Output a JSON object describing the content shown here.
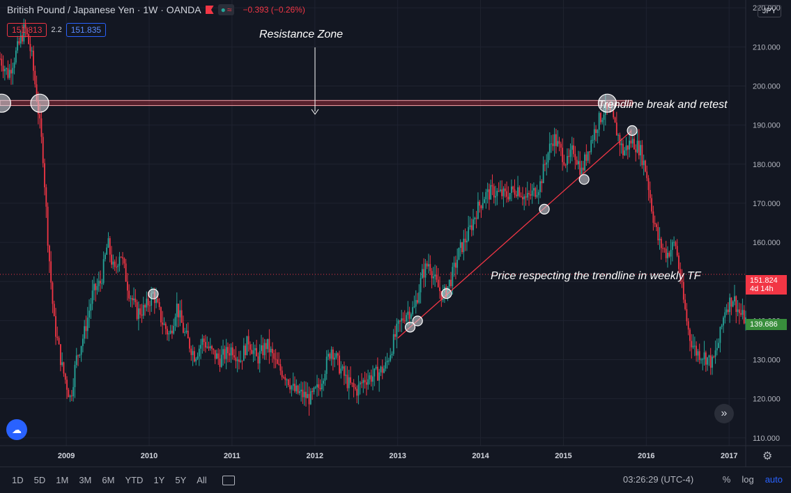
{
  "header": {
    "symbol": "British Pound / Japanese Yen · 1W · OANDA",
    "change": "−0.393 (−0.26%)",
    "sell_price": "151.813",
    "spread": "2.2",
    "buy_price": "151.835",
    "currency": "JPY"
  },
  "annotations": {
    "resistance": "Resistance Zone",
    "retest": "Trendline break and retest",
    "respect": "Price respecting the trendline in weekly TF"
  },
  "price_tags": {
    "current": "151.824",
    "countdown": "4d 14h",
    "green": "139.686"
  },
  "toolbar": {
    "timeframes": [
      "1D",
      "5D",
      "1M",
      "3M",
      "6M",
      "YTD",
      "1Y",
      "5Y",
      "All"
    ],
    "clock": "03:26:29 (UTC-4)",
    "percent": "%",
    "log": "log",
    "auto": "auto"
  },
  "colors": {
    "up": "#26a69a",
    "down": "#f23645",
    "trendline": "#f23645",
    "zone": "#f23645",
    "background": "#131722"
  },
  "chart_data": {
    "type": "candlestick",
    "x_ticks": [
      "2009",
      "2010",
      "2011",
      "2012",
      "2013",
      "2014",
      "2015",
      "2016",
      "2017"
    ],
    "y_ticks": [
      "220.000",
      "210.000",
      "200.000",
      "190.000",
      "180.000",
      "170.000",
      "160.000",
      "150.000",
      "140.000",
      "130.000",
      "120.000",
      "110.000"
    ],
    "ylim": [
      108,
      222
    ],
    "xlim": [
      2008.2,
      2017.2
    ],
    "resistance_zone": [
      195,
      196.3
    ],
    "current_price": 151.824,
    "trendline": {
      "start": [
        2013.0,
        135.5
      ],
      "end": [
        2015.82,
        188.5
      ]
    },
    "touch_points": [
      {
        "x": 2008.22,
        "y": 195.6,
        "large": true
      },
      {
        "x": 2008.68,
        "y": 195.6,
        "large": true
      },
      {
        "x": 2015.53,
        "y": 195.6,
        "large": true
      },
      {
        "x": 2010.05,
        "y": 146.8,
        "large": false
      },
      {
        "x": 2013.15,
        "y": 138.3,
        "large": false
      },
      {
        "x": 2013.24,
        "y": 139.9,
        "large": false
      },
      {
        "x": 2013.59,
        "y": 146.9,
        "large": false
      },
      {
        "x": 2014.77,
        "y": 168.5,
        "large": false
      },
      {
        "x": 2015.25,
        "y": 176.1,
        "large": false
      },
      {
        "x": 2015.83,
        "y": 188.6,
        "large": false
      }
    ],
    "price_path": [
      [
        2008.2,
        207
      ],
      [
        2008.3,
        203
      ],
      [
        2008.42,
        210
      ],
      [
        2008.5,
        215
      ],
      [
        2008.58,
        208
      ],
      [
        2008.65,
        196
      ],
      [
        2008.72,
        182
      ],
      [
        2008.78,
        160
      ],
      [
        2008.85,
        140
      ],
      [
        2008.95,
        128
      ],
      [
        2009.05,
        120
      ],
      [
        2009.12,
        130
      ],
      [
        2009.22,
        137
      ],
      [
        2009.32,
        147
      ],
      [
        2009.42,
        150
      ],
      [
        2009.5,
        160
      ],
      [
        2009.58,
        152
      ],
      [
        2009.65,
        158
      ],
      [
        2009.75,
        148
      ],
      [
        2009.85,
        142
      ],
      [
        2009.95,
        143
      ],
      [
        2010.05,
        147
      ],
      [
        2010.15,
        140
      ],
      [
        2010.25,
        136
      ],
      [
        2010.33,
        144
      ],
      [
        2010.42,
        137
      ],
      [
        2010.55,
        131
      ],
      [
        2010.65,
        135
      ],
      [
        2010.75,
        132
      ],
      [
        2010.85,
        130
      ],
      [
        2011.0,
        133
      ],
      [
        2011.1,
        130
      ],
      [
        2011.2,
        135
      ],
      [
        2011.3,
        130
      ],
      [
        2011.42,
        134
      ],
      [
        2011.55,
        128
      ],
      [
        2011.65,
        126
      ],
      [
        2011.75,
        122
      ],
      [
        2011.85,
        121
      ],
      [
        2011.95,
        120
      ],
      [
        2012.05,
        123
      ],
      [
        2012.2,
        133
      ],
      [
        2012.3,
        128
      ],
      [
        2012.4,
        124
      ],
      [
        2012.5,
        122
      ],
      [
        2012.6,
        125
      ],
      [
        2012.72,
        126
      ],
      [
        2012.85,
        128
      ],
      [
        2013.0,
        138
      ],
      [
        2013.1,
        142
      ],
      [
        2013.2,
        143
      ],
      [
        2013.3,
        152
      ],
      [
        2013.38,
        155
      ],
      [
        2013.45,
        150
      ],
      [
        2013.55,
        146
      ],
      [
        2013.65,
        151
      ],
      [
        2013.75,
        158
      ],
      [
        2013.85,
        162
      ],
      [
        2013.95,
        168
      ],
      [
        2014.05,
        172
      ],
      [
        2014.15,
        173
      ],
      [
        2014.3,
        172
      ],
      [
        2014.45,
        174
      ],
      [
        2014.55,
        171
      ],
      [
        2014.65,
        173
      ],
      [
        2014.72,
        175
      ],
      [
        2014.8,
        182
      ],
      [
        2014.88,
        187
      ],
      [
        2014.95,
        184
      ],
      [
        2015.05,
        180
      ],
      [
        2015.12,
        184
      ],
      [
        2015.22,
        178
      ],
      [
        2015.3,
        184
      ],
      [
        2015.4,
        190
      ],
      [
        2015.5,
        194
      ],
      [
        2015.58,
        192
      ],
      [
        2015.65,
        188
      ],
      [
        2015.72,
        183
      ],
      [
        2015.82,
        186
      ],
      [
        2015.92,
        184
      ],
      [
        2016.0,
        178
      ],
      [
        2016.08,
        167
      ],
      [
        2016.15,
        160
      ],
      [
        2016.25,
        157
      ],
      [
        2016.35,
        160
      ],
      [
        2016.45,
        145
      ],
      [
        2016.52,
        136
      ],
      [
        2016.6,
        132
      ],
      [
        2016.7,
        131
      ],
      [
        2016.8,
        129
      ],
      [
        2016.88,
        135
      ],
      [
        2016.95,
        143
      ],
      [
        2017.05,
        146
      ],
      [
        2017.12,
        142
      ],
      [
        2017.2,
        140
      ]
    ]
  }
}
